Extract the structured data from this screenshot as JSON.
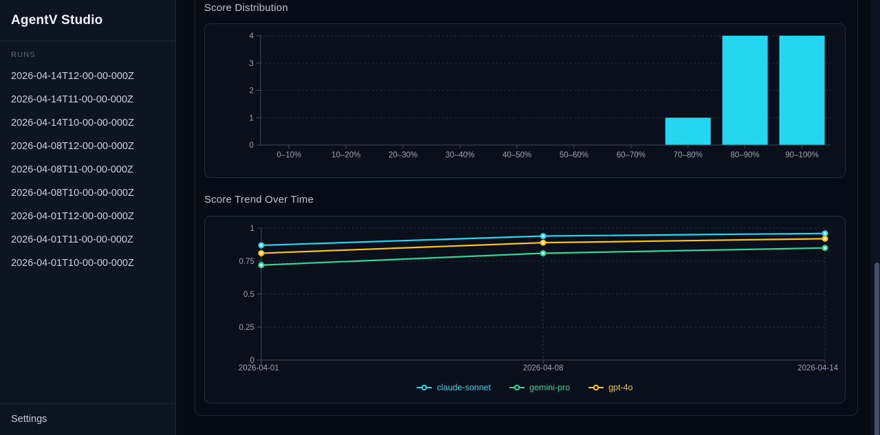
{
  "app": {
    "title": "AgentV Studio"
  },
  "sidebar": {
    "runs_label": "RUNS",
    "runs": [
      "2026-04-14T12-00-00-000Z",
      "2026-04-14T11-00-00-000Z",
      "2026-04-14T10-00-00-000Z",
      "2026-04-08T12-00-00-000Z",
      "2026-04-08T11-00-00-000Z",
      "2026-04-08T10-00-00-000Z",
      "2026-04-01T12-00-00-000Z",
      "2026-04-01T11-00-00-000Z",
      "2026-04-01T10-00-00-000Z"
    ],
    "settings_label": "Settings"
  },
  "main": {
    "sections": [
      {
        "title": "Score Distribution"
      },
      {
        "title": "Score Trend Over Time"
      }
    ]
  },
  "colors": {
    "bar": "#25d6f0",
    "claude": "#25d6f0",
    "gemini": "#34d399",
    "gpt": "#fcc419",
    "grid": "#242c3d",
    "axis": "#414b60",
    "tick_label": "#9aa3b5"
  },
  "chart_data": [
    {
      "type": "bar",
      "title": "Score Distribution",
      "categories": [
        "0–10%",
        "10–20%",
        "20–30%",
        "30–40%",
        "40–50%",
        "50–60%",
        "60–70%",
        "70–80%",
        "80–90%",
        "90–100%"
      ],
      "values": [
        0,
        0,
        0,
        0,
        0,
        0,
        0,
        1,
        4,
        4
      ],
      "xlabel": "",
      "ylabel": "",
      "ylim": [
        0,
        4
      ],
      "yticks": [
        0,
        1,
        2,
        3,
        4
      ],
      "grid": true,
      "legend": false,
      "bar_color": "#25d6f0"
    },
    {
      "type": "line",
      "title": "Score Trend Over Time",
      "x": [
        "2026-04-01",
        "2026-04-08",
        "2026-04-14"
      ],
      "series": [
        {
          "name": "claude-sonnet",
          "color": "#25d6f0",
          "values": [
            0.87,
            0.94,
            0.96
          ]
        },
        {
          "name": "gemini-pro",
          "color": "#34d399",
          "values": [
            0.72,
            0.81,
            0.85
          ]
        },
        {
          "name": "gpt-4o",
          "color": "#fcc419",
          "values": [
            0.81,
            0.89,
            0.92
          ]
        }
      ],
      "ylim": [
        0,
        1
      ],
      "yticks": [
        0,
        0.25,
        0.5,
        0.75,
        1
      ],
      "grid": true,
      "legend_position": "bottom"
    }
  ]
}
